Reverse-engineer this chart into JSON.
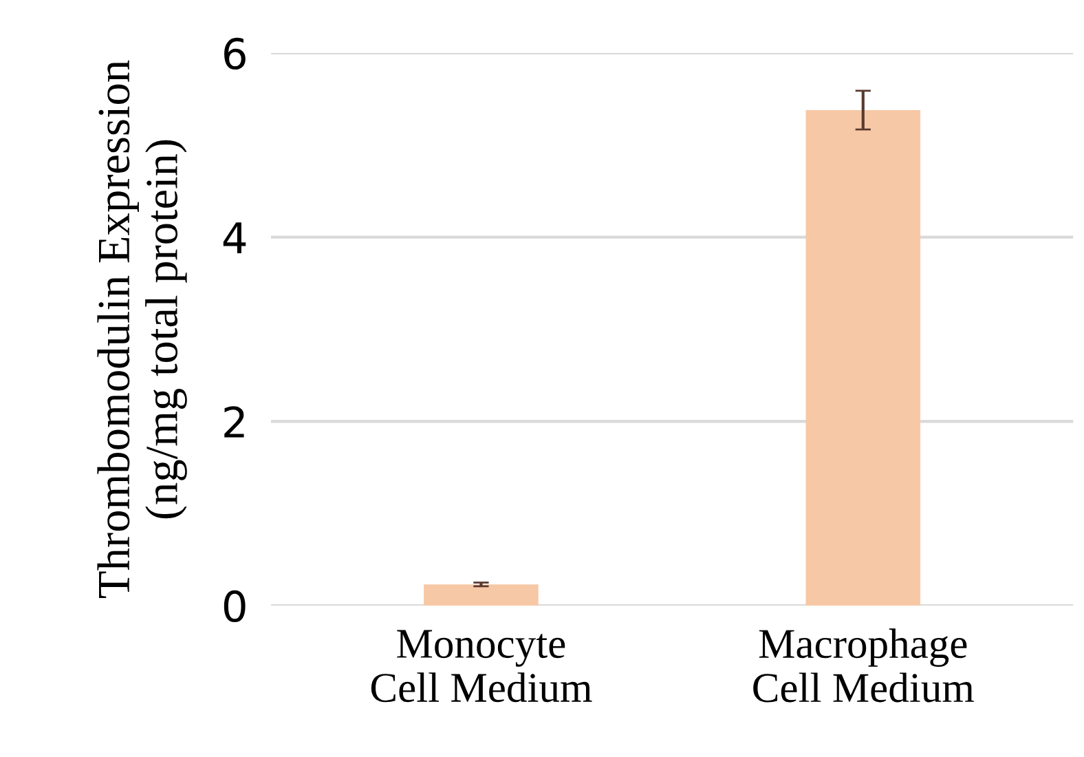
{
  "chart_data": {
    "type": "bar",
    "ylabel": "Thrombomodulin Expression\n(ng/mg total protein)",
    "categories": [
      "Monocyte\nCell Medium",
      "Macrophage\nCell Medium"
    ],
    "values": [
      0.23,
      5.38
    ],
    "errors": [
      0.02,
      0.21
    ],
    "color": "#f7c8a6",
    "ylim": [
      0,
      6
    ],
    "yticks": [
      0,
      2,
      4,
      6
    ],
    "grid": "y"
  }
}
